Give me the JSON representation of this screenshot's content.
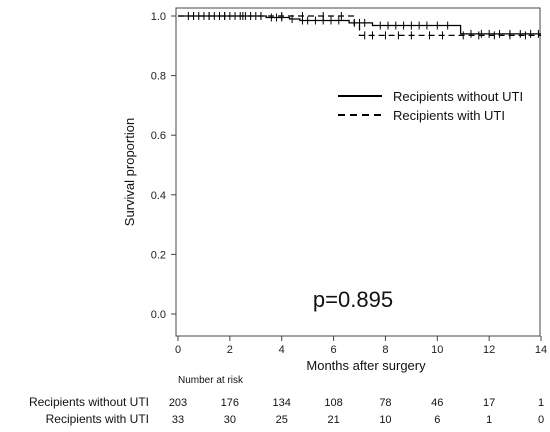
{
  "chart_data": {
    "type": "line",
    "subtype": "kaplan-meier",
    "title": "",
    "xlabel": "Months after surgery",
    "ylabel": "Survival proportion",
    "xlim": [
      0,
      14
    ],
    "ylim": [
      0,
      1.0
    ],
    "xticks": [
      0,
      2,
      4,
      6,
      8,
      10,
      12,
      14
    ],
    "yticks": [
      0.0,
      0.2,
      0.4,
      0.6,
      0.8,
      1.0
    ],
    "ytick_labels": [
      "0.0",
      "0.2",
      "0.4",
      "0.6",
      "0.8",
      "1.0"
    ],
    "grid": false,
    "legend_position": "upper-right",
    "annotation": "p=0.895",
    "series": [
      {
        "name": "Recipients without UTI",
        "line_style": "solid",
        "steps": [
          [
            0,
            1.0
          ],
          [
            3.4,
            1.0
          ],
          [
            3.4,
            0.995
          ],
          [
            4.3,
            0.995
          ],
          [
            4.3,
            0.99
          ],
          [
            4.7,
            0.99
          ],
          [
            4.7,
            0.985
          ],
          [
            6.6,
            0.985
          ],
          [
            6.6,
            0.977
          ],
          [
            7.5,
            0.977
          ],
          [
            7.5,
            0.968
          ],
          [
            10.9,
            0.968
          ],
          [
            10.9,
            0.94
          ],
          [
            14.0,
            0.94
          ]
        ],
        "censored": [
          0.4,
          0.6,
          0.8,
          1.0,
          1.2,
          1.4,
          1.6,
          1.8,
          2.0,
          2.2,
          2.4,
          2.6,
          2.8,
          3.0,
          3.2,
          3.6,
          3.8,
          4.0,
          4.4,
          4.8,
          5.0,
          5.3,
          5.6,
          5.9,
          6.2,
          6.8,
          7.0,
          7.2,
          7.8,
          8.1,
          8.4,
          8.7,
          9.0,
          9.3,
          9.6,
          10.0,
          10.4,
          11.3,
          11.7,
          12.0,
          12.4,
          12.8,
          13.2,
          13.6,
          13.9
        ]
      },
      {
        "name": "Recipients with UTI",
        "line_style": "dashed",
        "steps": [
          [
            0,
            1.0
          ],
          [
            6.8,
            1.0
          ],
          [
            6.8,
            0.97
          ],
          [
            7.0,
            0.97
          ],
          [
            7.0,
            0.935
          ],
          [
            14.0,
            0.935
          ]
        ],
        "censored": [
          0.6,
          1.2,
          1.8,
          2.5,
          3.2,
          4.0,
          4.8,
          5.6,
          6.3,
          7.2,
          7.5,
          8.0,
          8.5,
          9.0,
          9.7,
          10.2,
          11.0,
          11.6,
          12.2,
          12.8,
          13.4
        ]
      }
    ],
    "risk_table": {
      "header": "Number at risk",
      "times": [
        0,
        2,
        4,
        6,
        8,
        10,
        12,
        14
      ],
      "rows": [
        {
          "label": "Recipients without UTI",
          "counts": [
            203,
            176,
            134,
            108,
            78,
            46,
            17,
            1
          ]
        },
        {
          "label": "Recipients with UTI",
          "counts": [
            33,
            30,
            25,
            21,
            10,
            6,
            1,
            0
          ]
        }
      ]
    }
  }
}
